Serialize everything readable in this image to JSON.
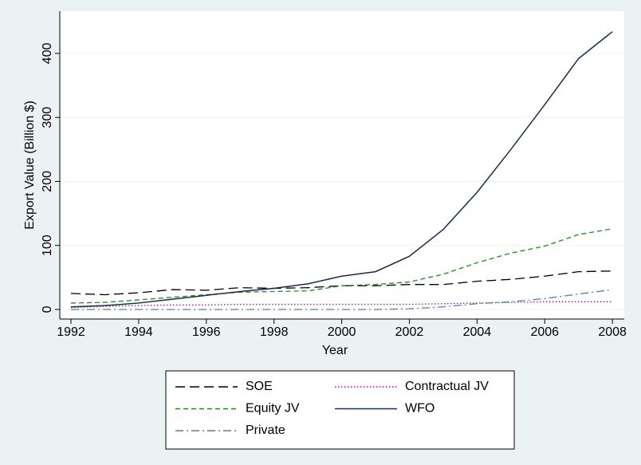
{
  "chart_data": {
    "type": "line",
    "x": [
      1992,
      1993,
      1994,
      1995,
      1996,
      1997,
      1998,
      1999,
      2000,
      2001,
      2002,
      2003,
      2004,
      2005,
      2006,
      2007,
      2008
    ],
    "xlabel": "Year",
    "ylabel": "Export Value (Billion $)",
    "xlim": [
      1991.67,
      2008.35
    ],
    "ylim": [
      -15,
      466
    ],
    "xticks": [
      1992,
      1994,
      1996,
      1998,
      2000,
      2002,
      2004,
      2006,
      2008
    ],
    "yticks": [
      0,
      100,
      200,
      300,
      400
    ],
    "grid": true,
    "legend_position": "bottom",
    "series": [
      {
        "name": "SOE",
        "color": "#000000",
        "style": "longdash",
        "values": [
          25,
          23,
          26,
          31,
          30,
          34,
          33,
          34,
          37,
          37,
          39,
          39,
          44,
          47,
          52,
          59,
          60
        ]
      },
      {
        "name": "Contractual JV",
        "color": "#b000b0",
        "style": "dotted",
        "values": [
          3,
          5,
          6,
          7,
          7,
          8,
          8,
          8,
          8,
          8,
          8,
          9,
          10,
          11,
          12,
          12,
          12
        ]
      },
      {
        "name": "Equity JV",
        "color": "#1a8c1a",
        "style": "dashed",
        "values": [
          10,
          11,
          15,
          19,
          23,
          27,
          28,
          29,
          37,
          39,
          43,
          55,
          73,
          88,
          99,
          117,
          126
        ]
      },
      {
        "name": "WFO",
        "color": "#1a2b4c",
        "style": "solid",
        "values": [
          4,
          6,
          10,
          16,
          22,
          28,
          33,
          40,
          52,
          59,
          83,
          125,
          183,
          250,
          320,
          392,
          434
        ]
      },
      {
        "name": "Private",
        "color": "#5a7f9a",
        "style": "dashdot",
        "values": [
          0,
          0,
          0,
          0,
          0,
          0,
          0,
          0,
          0,
          0,
          1,
          4,
          9,
          12,
          17,
          24,
          31
        ]
      }
    ]
  }
}
